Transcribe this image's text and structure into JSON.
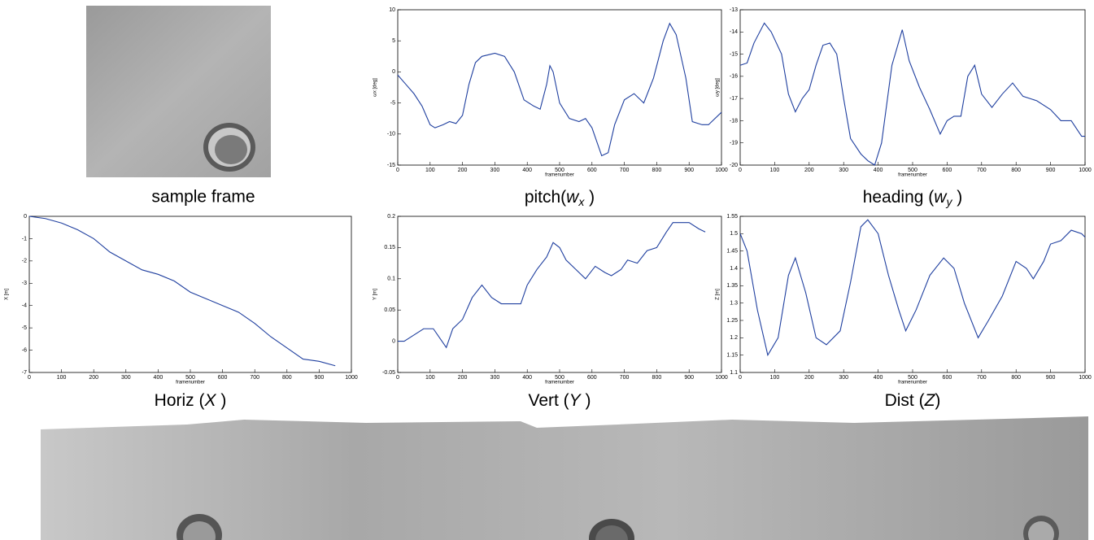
{
  "figure": {
    "sample_caption": "sample frame"
  },
  "chart_data": [
    {
      "type": "line",
      "caption": [
        {
          "text": "pitch("
        },
        {
          "text": "w",
          "style": "italic"
        },
        {
          "text": "x",
          "style": "sub"
        },
        {
          "text": " )"
        }
      ],
      "xlabel": "framenumber",
      "ylabel": "ωx [deg]",
      "x": [
        0,
        25,
        50,
        75,
        100,
        115,
        140,
        160,
        180,
        200,
        220,
        240,
        260,
        300,
        330,
        360,
        390,
        420,
        440,
        460,
        470,
        480,
        500,
        530,
        560,
        580,
        600,
        630,
        650,
        670,
        700,
        730,
        760,
        790,
        820,
        840,
        860,
        890,
        910,
        940,
        960,
        1000
      ],
      "series": [
        {
          "color": "#1f3f9f",
          "values": [
            -0.5,
            -2,
            -3.5,
            -5.5,
            -8.5,
            -9,
            -8.5,
            -8,
            -8.3,
            -7,
            -2,
            1.5,
            2.5,
            3,
            2.5,
            0,
            -4.5,
            -5.5,
            -6,
            -2,
            1,
            0,
            -5,
            -7.5,
            -8,
            -7.5,
            -9,
            -13.5,
            -13,
            -8.5,
            -4.5,
            -3.5,
            -5,
            -1,
            5,
            7.8,
            6,
            -1,
            -8,
            -8.5,
            -8.5,
            -6.5
          ]
        }
      ],
      "xlim": [
        0,
        1000
      ],
      "ylim": [
        -15,
        10
      ],
      "xticks": [
        0,
        100,
        200,
        300,
        400,
        500,
        600,
        700,
        800,
        900,
        1000
      ],
      "yticks": [
        10,
        5,
        0,
        -5,
        -10,
        -15
      ]
    },
    {
      "type": "line",
      "caption": [
        {
          "text": "heading ("
        },
        {
          "text": "w",
          "style": "italic"
        },
        {
          "text": "y",
          "style": "sub"
        },
        {
          "text": " )"
        }
      ],
      "xlabel": "framenumber",
      "ylabel": "ωy [deg]",
      "x": [
        0,
        20,
        40,
        70,
        90,
        120,
        140,
        160,
        180,
        200,
        220,
        240,
        260,
        280,
        300,
        320,
        350,
        370,
        390,
        410,
        440,
        470,
        490,
        520,
        550,
        580,
        600,
        620,
        640,
        660,
        680,
        700,
        730,
        760,
        790,
        820,
        860,
        900,
        930,
        960,
        990,
        1000
      ],
      "series": [
        {
          "color": "#1f3f9f",
          "values": [
            -15.5,
            -15.4,
            -14.5,
            -13.6,
            -14,
            -15,
            -16.8,
            -17.6,
            -17,
            -16.6,
            -15.5,
            -14.6,
            -14.5,
            -15,
            -17,
            -18.8,
            -19.5,
            -19.8,
            -20,
            -19,
            -15.5,
            -13.9,
            -15.3,
            -16.5,
            -17.5,
            -18.6,
            -18,
            -17.8,
            -17.8,
            -16,
            -15.5,
            -16.8,
            -17.4,
            -16.8,
            -16.3,
            -16.9,
            -17.1,
            -17.5,
            -18,
            -18,
            -18.7,
            -18.7
          ]
        }
      ],
      "xlim": [
        0,
        1000
      ],
      "ylim": [
        -20,
        -13
      ],
      "xticks": [
        0,
        100,
        200,
        300,
        400,
        500,
        600,
        700,
        800,
        900,
        1000
      ],
      "yticks": [
        -13,
        -14,
        -15,
        -16,
        -17,
        -18,
        -19,
        -20
      ]
    },
    {
      "type": "line",
      "caption": [
        {
          "text": "Horiz ("
        },
        {
          "text": "X",
          "style": "italic"
        },
        {
          "text": " )"
        }
      ],
      "xlabel": "framenumber",
      "ylabel": "X [m]",
      "x": [
        0,
        50,
        100,
        150,
        200,
        250,
        300,
        350,
        400,
        450,
        500,
        550,
        600,
        650,
        700,
        750,
        800,
        850,
        900,
        950
      ],
      "series": [
        {
          "color": "#1f3f9f",
          "values": [
            0,
            -0.1,
            -0.3,
            -0.6,
            -1.0,
            -1.6,
            -2.0,
            -2.4,
            -2.6,
            -2.9,
            -3.4,
            -3.7,
            -4.0,
            -4.3,
            -4.8,
            -5.4,
            -5.9,
            -6.4,
            -6.5,
            -6.7
          ]
        }
      ],
      "xlim": [
        0,
        1000
      ],
      "ylim": [
        -7,
        0
      ],
      "xticks": [
        0,
        100,
        200,
        300,
        400,
        500,
        600,
        700,
        800,
        900,
        1000
      ],
      "yticks": [
        0,
        -1,
        -2,
        -3,
        -4,
        -5,
        -6,
        -7
      ]
    },
    {
      "type": "line",
      "caption": [
        {
          "text": "Vert ("
        },
        {
          "text": "Y",
          "style": "italic"
        },
        {
          "text": " )"
        }
      ],
      "xlabel": "framenumber",
      "ylabel": "Y [m]",
      "x": [
        0,
        20,
        50,
        80,
        110,
        130,
        150,
        170,
        200,
        230,
        260,
        290,
        320,
        350,
        380,
        400,
        430,
        460,
        480,
        500,
        520,
        550,
        580,
        610,
        640,
        660,
        690,
        710,
        740,
        770,
        800,
        830,
        850,
        900,
        930,
        950
      ],
      "series": [
        {
          "color": "#1f3f9f",
          "values": [
            0,
            0,
            0.01,
            0.02,
            0.02,
            0.005,
            -0.01,
            0.02,
            0.035,
            0.07,
            0.09,
            0.07,
            0.06,
            0.06,
            0.06,
            0.09,
            0.115,
            0.135,
            0.158,
            0.15,
            0.13,
            0.115,
            0.1,
            0.12,
            0.11,
            0.105,
            0.115,
            0.13,
            0.125,
            0.145,
            0.15,
            0.175,
            0.19,
            0.19,
            0.18,
            0.175
          ]
        }
      ],
      "xlim": [
        0,
        1000
      ],
      "ylim": [
        -0.05,
        0.2
      ],
      "xticks": [
        0,
        100,
        200,
        300,
        400,
        500,
        600,
        700,
        800,
        900,
        1000
      ],
      "yticks": [
        0.2,
        0.15,
        0.1,
        0.05,
        0,
        -0.05
      ]
    },
    {
      "type": "line",
      "caption": [
        {
          "text": "Dist ("
        },
        {
          "text": "Z",
          "style": "italic"
        },
        {
          "text": ")"
        }
      ],
      "xlabel": "framenumber",
      "ylabel": "Z [m]",
      "x": [
        0,
        20,
        50,
        80,
        110,
        140,
        160,
        190,
        220,
        250,
        290,
        320,
        350,
        370,
        400,
        430,
        460,
        480,
        510,
        550,
        590,
        620,
        650,
        690,
        720,
        760,
        800,
        830,
        850,
        880,
        900,
        930,
        960,
        990,
        1000
      ],
      "series": [
        {
          "color": "#1f3f9f",
          "values": [
            1.5,
            1.45,
            1.28,
            1.15,
            1.2,
            1.38,
            1.43,
            1.33,
            1.2,
            1.18,
            1.22,
            1.36,
            1.52,
            1.54,
            1.5,
            1.38,
            1.28,
            1.22,
            1.28,
            1.38,
            1.43,
            1.4,
            1.3,
            1.2,
            1.25,
            1.32,
            1.42,
            1.4,
            1.37,
            1.42,
            1.47,
            1.48,
            1.51,
            1.5,
            1.49
          ]
        }
      ],
      "xlim": [
        0,
        1000
      ],
      "ylim": [
        1.1,
        1.55
      ],
      "xticks": [
        0,
        100,
        200,
        300,
        400,
        500,
        600,
        700,
        800,
        900,
        1000
      ],
      "yticks": [
        1.55,
        1.5,
        1.45,
        1.4,
        1.35,
        1.3,
        1.25,
        1.2,
        1.15,
        1.1
      ]
    }
  ]
}
